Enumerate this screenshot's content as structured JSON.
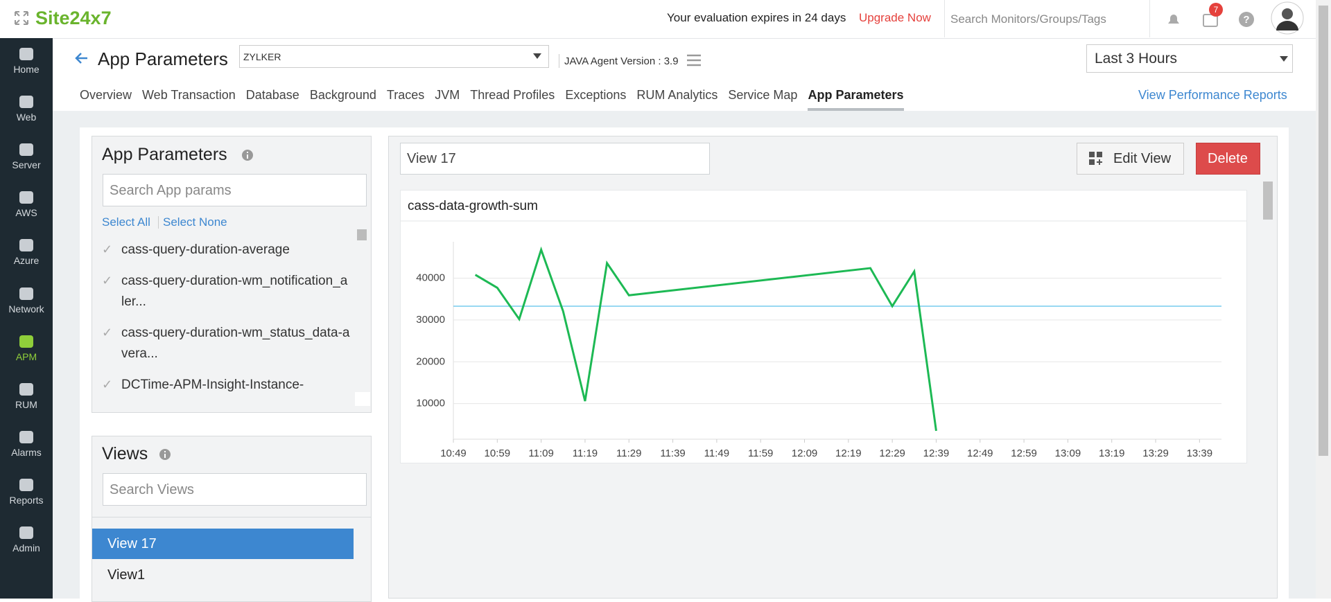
{
  "header": {
    "brand": "Site24x7",
    "evaluation": "Your evaluation expires in 24 days",
    "upgrade": "Upgrade Now",
    "search_placeholder": "Search Monitors/Groups/Tags",
    "notification_count": 7
  },
  "sidebar": {
    "items": [
      "Home",
      "Web",
      "Server",
      "AWS",
      "Azure",
      "Network",
      "APM",
      "RUM",
      "Alarms",
      "Reports",
      "Admin"
    ],
    "active": 6
  },
  "page": {
    "title": "App Parameters",
    "monitor": "ZYLKER",
    "agent_version": "JAVA Agent Version : 3.9",
    "time_range": "Last 3 Hours",
    "tabs": [
      "Overview",
      "Web Transaction",
      "Database",
      "Background",
      "Traces",
      "JVM",
      "Thread Profiles",
      "Exceptions",
      "RUM Analytics",
      "Service Map",
      "App Parameters"
    ],
    "active_tab": 10,
    "reports_link": "View Performance Reports"
  },
  "params_panel": {
    "title": "App Parameters",
    "search_placeholder": "Search App params",
    "select_all": "Select All",
    "select_none": "Select None",
    "items": [
      "cass-query-duration-average",
      "cass-query-duration-wm_notification_aler...",
      "cass-query-duration-wm_status_data-avera...",
      "DCTime-APM-Insight-Instance-"
    ]
  },
  "views_panel": {
    "title": "Views",
    "search_placeholder": "Search Views",
    "items": [
      "View 17",
      "View1"
    ],
    "selected": 0
  },
  "view": {
    "name": "View 17",
    "edit": "Edit View",
    "delete": "Delete"
  },
  "chart_data": {
    "type": "line",
    "title": "cass-data-growth-sum",
    "x": [
      "10:54",
      "10:59",
      "11:04",
      "11:09",
      "11:14",
      "11:19",
      "11:24",
      "11:29",
      "12:24",
      "12:29",
      "12:34",
      "12:39"
    ],
    "values": [
      40800,
      37700,
      30200,
      46800,
      32100,
      10600,
      43600,
      35900,
      42400,
      33300,
      41600,
      3500
    ],
    "color": "#1db954",
    "reference_line": {
      "value": 33300,
      "color": "#5bc0eb"
    },
    "xlim": [
      "10:49",
      "13:44"
    ],
    "xticks": [
      "10:49",
      "10:59",
      "11:09",
      "11:19",
      "11:29",
      "11:39",
      "11:49",
      "11:59",
      "12:09",
      "12:19",
      "12:29",
      "12:39",
      "12:49",
      "12:59",
      "13:09",
      "13:19",
      "13:29",
      "13:39"
    ],
    "ylim": [
      1500,
      48700
    ],
    "yticks": [
      10000,
      20000,
      30000,
      40000
    ],
    "grid": true
  }
}
